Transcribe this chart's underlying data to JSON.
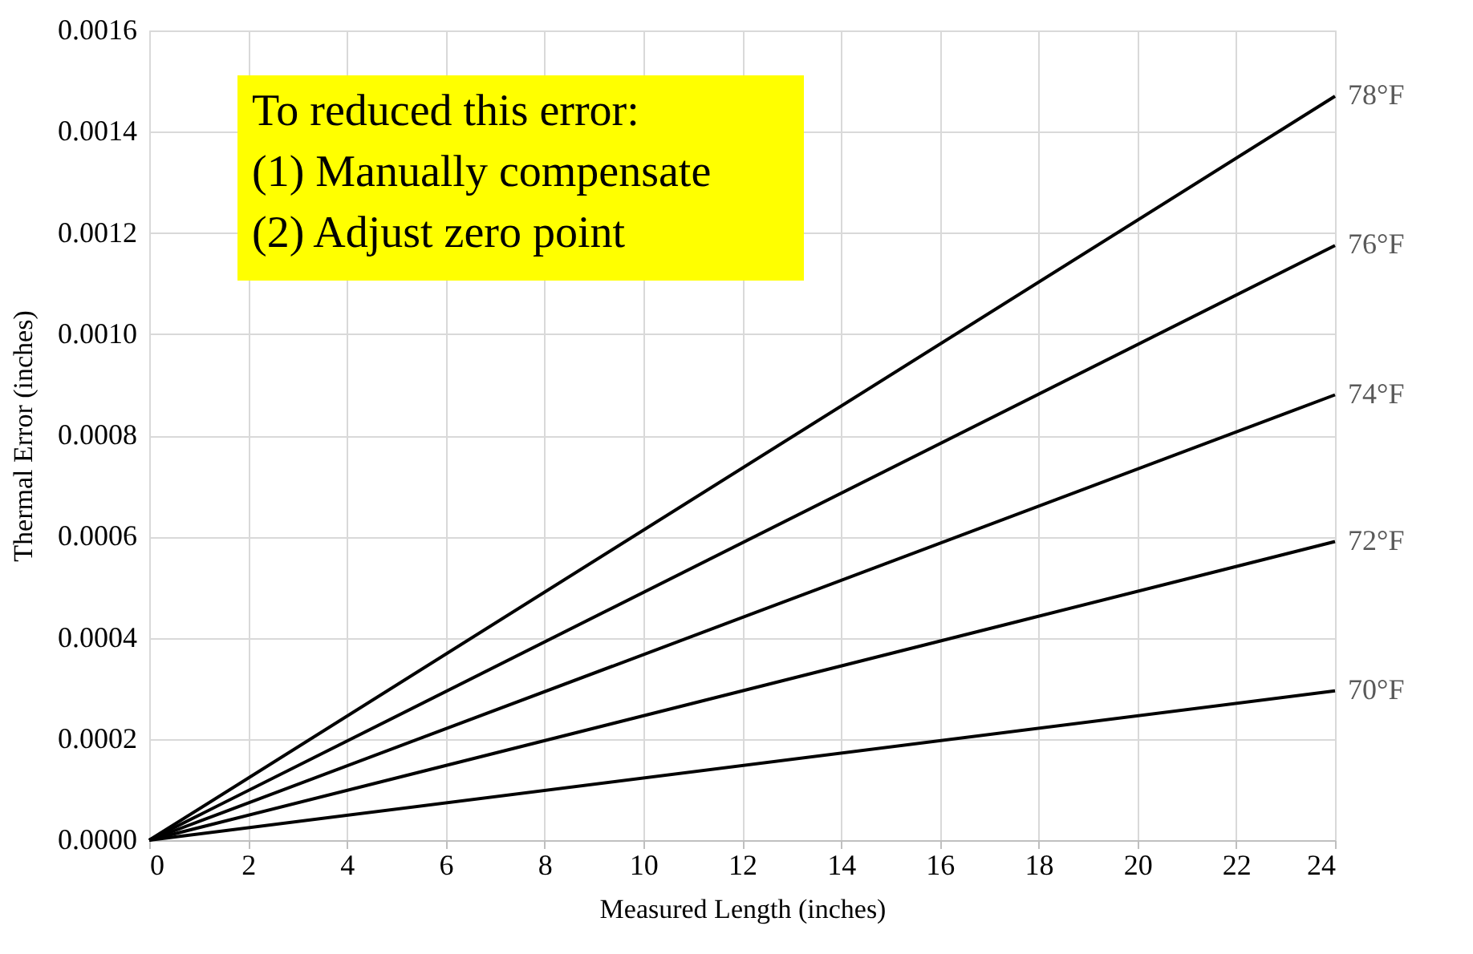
{
  "chart_data": {
    "type": "line",
    "xlabel": "Measured Length (inches)",
    "ylabel": "Thermal Error (inches)",
    "x": [
      0,
      24
    ],
    "series": [
      {
        "name": "78°F",
        "color": "#000000",
        "values": [
          0,
          0.00147
        ]
      },
      {
        "name": "76°F",
        "color": "#000000",
        "values": [
          0,
          0.001175
        ]
      },
      {
        "name": "74°F",
        "color": "#000000",
        "values": [
          0,
          0.00088
        ]
      },
      {
        "name": "72°F",
        "color": "#000000",
        "values": [
          0,
          0.00059
        ]
      },
      {
        "name": "70°F",
        "color": "#000000",
        "values": [
          0,
          0.000295
        ]
      }
    ],
    "xlim": [
      0,
      24
    ],
    "xticks": [
      0,
      2,
      4,
      6,
      8,
      10,
      12,
      14,
      16,
      18,
      20,
      22,
      24
    ],
    "ylim": [
      0,
      0.0016
    ],
    "yticks": [
      {
        "value": 0,
        "label": "0.0000"
      },
      {
        "value": 0.0002,
        "label": "0.0002"
      },
      {
        "value": 0.0004,
        "label": "0.0004"
      },
      {
        "value": 0.0006,
        "label": "0.0006"
      },
      {
        "value": 0.0008,
        "label": "0.0008"
      },
      {
        "value": 0.001,
        "label": "0.0010"
      },
      {
        "value": 0.0012,
        "label": "0.0012"
      },
      {
        "value": 0.0014,
        "label": "0.0014"
      },
      {
        "value": 0.0016,
        "label": "0.0016"
      }
    ],
    "grid": true,
    "marker": "none",
    "line_style": "solid",
    "annotations": [
      "To reduced this error:\n(1) Manually compensate\n(2) Adjust zero point"
    ]
  }
}
